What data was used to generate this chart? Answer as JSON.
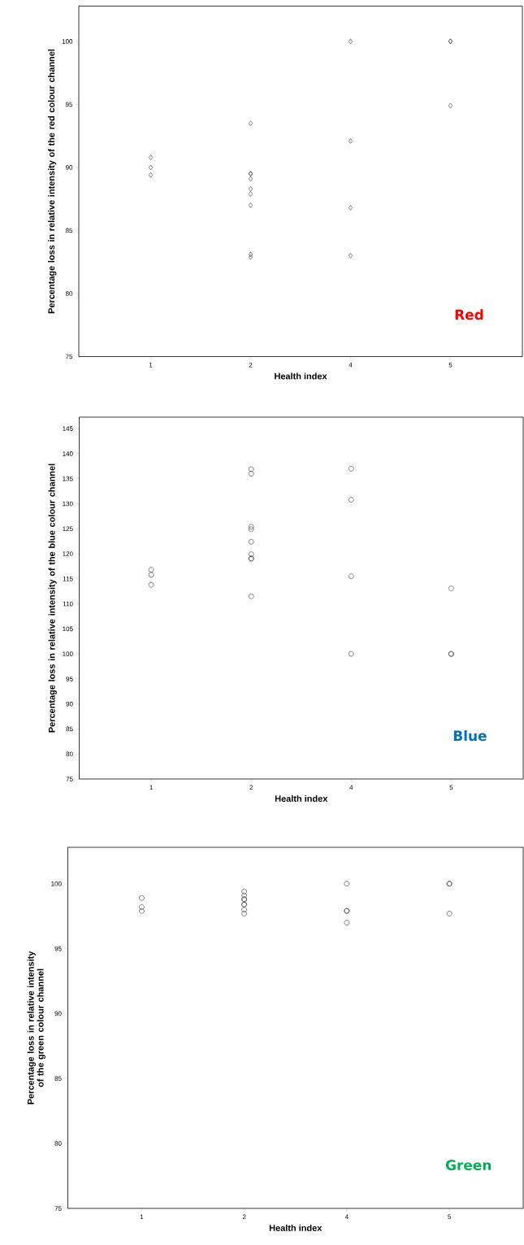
{
  "chart_data": [
    {
      "type": "scatter",
      "xlabel": "Health index",
      "ylabel": "Percentage loss in relative intensity of the red colour channel",
      "categories": [
        "1",
        "2",
        "4",
        "5"
      ],
      "ylim": [
        75,
        102.8
      ],
      "yticks": [
        75,
        80,
        85,
        90,
        95,
        100
      ],
      "marker": "diamond",
      "annotations": [
        "Red"
      ],
      "series": [
        {
          "color": "#333333",
          "x": [
            "1",
            "1",
            "1",
            "2",
            "2",
            "2",
            "2",
            "2",
            "2",
            "2",
            "2",
            "2",
            "4",
            "4",
            "4",
            "4",
            "5",
            "5",
            "5"
          ],
          "values": [
            90.8,
            90.0,
            89.4,
            93.5,
            89.5,
            89.5,
            89.1,
            88.3,
            87.9,
            87.0,
            83.1,
            82.9,
            100.0,
            92.1,
            86.8,
            83.0,
            100.0,
            100.0,
            94.9
          ]
        }
      ]
    },
    {
      "type": "scatter",
      "xlabel": "Health index",
      "ylabel": "Percentage loss in relative intensity of the blue colour channel",
      "categories": [
        "1",
        "2",
        "4",
        "5"
      ],
      "ylim": [
        75,
        147.3
      ],
      "yticks": [
        75,
        80,
        85,
        90,
        95,
        100,
        105,
        110,
        115,
        120,
        125,
        130,
        135,
        140,
        145
      ],
      "marker": "circle",
      "annotations": [
        "Blue"
      ],
      "series": [
        {
          "color": "#333333",
          "x": [
            "1",
            "1",
            "1",
            "2",
            "2",
            "2",
            "2",
            "2",
            "2",
            "2",
            "2",
            "2",
            "4",
            "4",
            "4",
            "4",
            "5",
            "5",
            "5"
          ],
          "values": [
            116.8,
            115.8,
            113.8,
            136.9,
            136.0,
            125.4,
            124.9,
            122.4,
            119.9,
            119.1,
            119.0,
            111.5,
            137.0,
            130.8,
            115.5,
            100.0,
            113.1,
            100.0,
            100.0
          ]
        }
      ]
    },
    {
      "type": "scatter",
      "xlabel": "Health index",
      "ylabel": "Percentage loss in relative intensity of the green colour channel",
      "categories": [
        "1",
        "2",
        "4",
        "5"
      ],
      "ylim": [
        75,
        102.8
      ],
      "yticks": [
        75,
        80,
        85,
        90,
        95,
        100
      ],
      "marker": "circle",
      "annotations": [
        "Green"
      ],
      "series": [
        {
          "color": "#333333",
          "x": [
            "1",
            "1",
            "1",
            "2",
            "2",
            "2",
            "2",
            "2",
            "2",
            "2",
            "2",
            "4",
            "4",
            "4",
            "4",
            "5",
            "5",
            "5"
          ],
          "values": [
            98.9,
            98.2,
            97.9,
            99.4,
            99.1,
            98.8,
            98.8,
            98.4,
            98.4,
            98.0,
            97.7,
            100.0,
            97.9,
            97.9,
            97.0,
            100.0,
            100.0,
            97.7
          ]
        }
      ]
    }
  ]
}
